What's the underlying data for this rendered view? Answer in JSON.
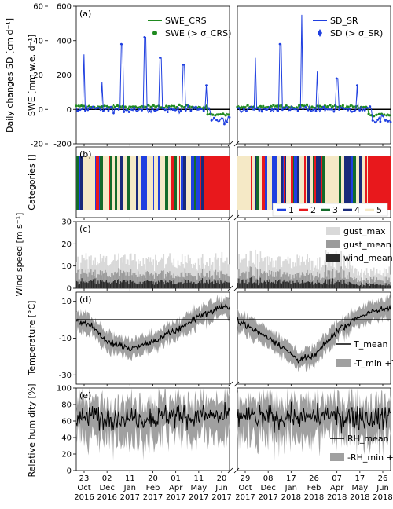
{
  "figure": {
    "x_tick_labels": {
      "left": [
        "23\nOct\n2016",
        "02\nDec\n2016",
        "11\nJan\n2017",
        "20\nFeb\n2017",
        "01\nApr\n2017",
        "11\nMay\n2017",
        "20\nJun\n2017"
      ],
      "right": [
        "29\nOct\n2017",
        "08\nDec\n2017",
        "17\nJan\n2018",
        "26\nFeb\n2018",
        "07\nApr\n2018",
        "17\nMay\n2018",
        "26\nJun\n2018"
      ]
    }
  },
  "chart_data": [
    {
      "panel": "(a)",
      "type": "line",
      "ylabel_left": "Daily changes SD [cm d⁻¹]",
      "ylabel_right": "SWE [mm w.e. d⁻¹]",
      "yticks_left": [
        -20,
        0,
        20,
        40,
        60
      ],
      "yticks_right": [
        -200,
        0,
        200,
        400,
        600
      ],
      "ylim_left": [
        -20,
        60
      ],
      "ylim_right": [
        -200,
        600
      ],
      "legend": [
        "SWE_CRS",
        "SWE (> σ_CRS)",
        "SD_SR",
        "SD (> σ_SR)"
      ],
      "legend_placement": "top",
      "colors": {
        "swe": "#1f8a1f",
        "sd": "#1f3fe0"
      },
      "series": [
        {
          "name": "SD_SR",
          "axis": "left",
          "peaks": [
            [
              0.05,
              32
            ],
            [
              0.17,
              16
            ],
            [
              0.3,
              38
            ],
            [
              0.45,
              42
            ],
            [
              0.55,
              30
            ],
            [
              0.7,
              26
            ],
            [
              0.85,
              14
            ]
          ],
          "peaks_right_period": [
            [
              0.12,
              30
            ],
            [
              0.28,
              38
            ],
            [
              0.42,
              55
            ],
            [
              0.52,
              22
            ],
            [
              0.65,
              18
            ],
            [
              0.78,
              14
            ]
          ]
        },
        {
          "name": "SWE_CRS",
          "axis": "right",
          "range": [
            -60,
            80
          ]
        }
      ]
    },
    {
      "panel": "(b)",
      "type": "heatmap",
      "ylabel": "Categories []",
      "legend": [
        "1",
        "2",
        "3",
        "4",
        "5"
      ],
      "category_colors": [
        "#1f3fe0",
        "#e8181c",
        "#146b2a",
        "#1a2a7a",
        "#f5e9c6"
      ]
    },
    {
      "panel": "(c)",
      "type": "area",
      "ylabel": "Wind speed [m s⁻¹]",
      "yticks": [
        0,
        10,
        20,
        30
      ],
      "ylim": [
        0,
        30
      ],
      "legend": [
        "gust_max",
        "gust_mean",
        "wind_mean"
      ],
      "colors": [
        "#d9d9d9",
        "#9b9b9b",
        "#2b2b2b"
      ],
      "typical_values": {
        "gust_max": 12,
        "gust_mean": 6,
        "wind_mean": 2.5
      }
    },
    {
      "panel": "(d)",
      "type": "line",
      "ylabel": "Temperature [°C]",
      "yticks": [
        -30,
        -10,
        10
      ],
      "ylim": [
        -35,
        15
      ],
      "legend": [
        "T_mean",
        "-T_min +T_max"
      ],
      "reference_line": 0,
      "seasonal_mean": [
        [
          0.0,
          0
        ],
        [
          0.1,
          -3
        ],
        [
          0.2,
          -12
        ],
        [
          0.35,
          -16
        ],
        [
          0.5,
          -12
        ],
        [
          0.65,
          -6
        ],
        [
          0.8,
          2
        ],
        [
          0.95,
          7
        ],
        [
          1.0,
          6
        ]
      ],
      "seasonal_mean_right": [
        [
          0.0,
          0
        ],
        [
          0.1,
          -5
        ],
        [
          0.25,
          -12
        ],
        [
          0.4,
          -22
        ],
        [
          0.5,
          -20
        ],
        [
          0.65,
          -6
        ],
        [
          0.8,
          2
        ],
        [
          1.0,
          7
        ]
      ]
    },
    {
      "panel": "(e)",
      "type": "line",
      "ylabel": "Relative humidity [%]",
      "yticks": [
        0,
        20,
        40,
        60,
        80,
        100
      ],
      "ylim": [
        0,
        100
      ],
      "legend": [
        "RH_mean",
        "-RH_min +RH_max"
      ]
    }
  ],
  "panel_labels": [
    "(a)",
    "(b)",
    "(c)",
    "(d)",
    "(e)"
  ]
}
